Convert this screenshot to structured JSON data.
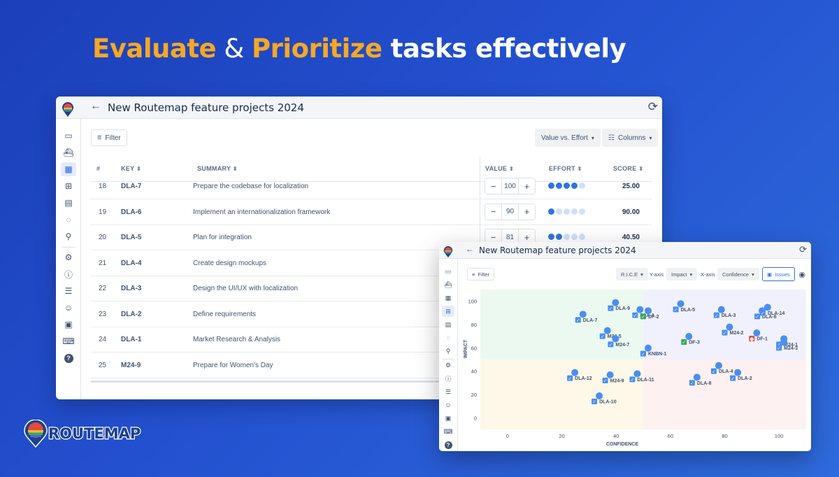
{
  "headline": {
    "part1": "Evaluate",
    "amp": " & ",
    "part2": "Prioritize",
    "rest": " tasks effectively"
  },
  "colors": {
    "accent": "#f7a823",
    "primary": "#2f72e4",
    "background": "#2350cf"
  },
  "table_view": {
    "title": "New Routemap feature projects 2024",
    "filter_label": "Filter",
    "view_select": "Value vs. Effort",
    "columns_label": "Columns",
    "headers": {
      "num": "#",
      "key": "KEY",
      "summary": "SUMMARY",
      "value": "VALUE",
      "effort": "EFFORT",
      "score": "SCORE"
    },
    "rows": [
      {
        "num": "18",
        "key": "DLA-7",
        "summary": "Prepare the codebase for localization",
        "value": "100",
        "effort": 4,
        "score": "25.00"
      },
      {
        "num": "19",
        "key": "DLA-6",
        "summary": "Implement an internationalization framework",
        "value": "90",
        "effort": 1,
        "score": "90.00"
      },
      {
        "num": "20",
        "key": "DLA-5",
        "summary": "Plan for integration",
        "value": "81",
        "effort": 2,
        "score": "40.50"
      },
      {
        "num": "21",
        "key": "DLA-4",
        "summary": "Create design mockups",
        "value": "",
        "effort": 0,
        "score": ""
      },
      {
        "num": "22",
        "key": "DLA-3",
        "summary": "Design the UI/UX with localization",
        "value": "",
        "effort": 0,
        "score": ""
      },
      {
        "num": "23",
        "key": "DLA-2",
        "summary": "Define requirements",
        "value": "",
        "effort": 0,
        "score": ""
      },
      {
        "num": "24",
        "key": "DLA-1",
        "summary": "Market Research & Analysis",
        "value": "",
        "effort": 0,
        "score": ""
      },
      {
        "num": "25",
        "key": "M24-9",
        "summary": "Prepare for Women's Day",
        "value": "",
        "effort": 0,
        "score": ""
      }
    ]
  },
  "scatter_view": {
    "title": "New Routemap feature projects 2024",
    "filter_label": "Filter",
    "model_select": "R.I.C.E",
    "yaxis_label": "Y-axis",
    "yaxis_select": "Impact",
    "xaxis_label": "X-axis",
    "xaxis_select": "Confidence",
    "issues_label": "Issues"
  },
  "chart_data": {
    "type": "scatter",
    "xlabel": "CONFIDENCE",
    "ylabel": "IMPACT",
    "xlim": [
      -10,
      110
    ],
    "ylim": [
      -10,
      110
    ],
    "xticks": [
      0,
      20,
      40,
      60,
      80,
      100
    ],
    "yticks": [
      0,
      20,
      40,
      60,
      80,
      100
    ],
    "quadrant_split": {
      "x": 50,
      "y": 50
    },
    "points": [
      {
        "label": "DLA-7",
        "x": 26,
        "y": 84,
        "type": "task"
      },
      {
        "label": "DLA-9",
        "x": 38,
        "y": 94,
        "type": "task"
      },
      {
        "label": "DLA-1",
        "x": 47,
        "y": 88,
        "type": "task"
      },
      {
        "label": "DF-2",
        "x": 50,
        "y": 87,
        "type": "story"
      },
      {
        "label": "DLA-5",
        "x": 62,
        "y": 93,
        "type": "task"
      },
      {
        "label": "DLA-3",
        "x": 77,
        "y": 88,
        "type": "task"
      },
      {
        "label": "DLA-6",
        "x": 92,
        "y": 87,
        "type": "task"
      },
      {
        "label": "DLA-14",
        "x": 94,
        "y": 90,
        "type": "task"
      },
      {
        "label": "M24-5",
        "x": 35,
        "y": 70,
        "type": "task"
      },
      {
        "label": "M24-7",
        "x": 38,
        "y": 63,
        "type": "task"
      },
      {
        "label": "KNBN-1",
        "x": 50,
        "y": 55,
        "type": "task"
      },
      {
        "label": "DF-3",
        "x": 65,
        "y": 65,
        "type": "story"
      },
      {
        "label": "M24-2",
        "x": 80,
        "y": 73,
        "type": "task"
      },
      {
        "label": "DF-1",
        "x": 90,
        "y": 68,
        "type": "bug"
      },
      {
        "label": "M24-1",
        "x": 100,
        "y": 63,
        "type": "task"
      },
      {
        "label": "M24-3",
        "x": 100,
        "y": 60,
        "type": "task"
      },
      {
        "label": "DLA-12",
        "x": 23,
        "y": 34,
        "type": "task"
      },
      {
        "label": "M24-9",
        "x": 36,
        "y": 32,
        "type": "task"
      },
      {
        "label": "DLA-11",
        "x": 46,
        "y": 33,
        "type": "task"
      },
      {
        "label": "DLA-10",
        "x": 32,
        "y": 14,
        "type": "task"
      },
      {
        "label": "DLA-4",
        "x": 76,
        "y": 40,
        "type": "task"
      },
      {
        "label": "DLA-8",
        "x": 68,
        "y": 30,
        "type": "task"
      },
      {
        "label": "DLA-2",
        "x": 83,
        "y": 34,
        "type": "task"
      }
    ]
  },
  "brand": {
    "name": "ROUTEMAP"
  }
}
